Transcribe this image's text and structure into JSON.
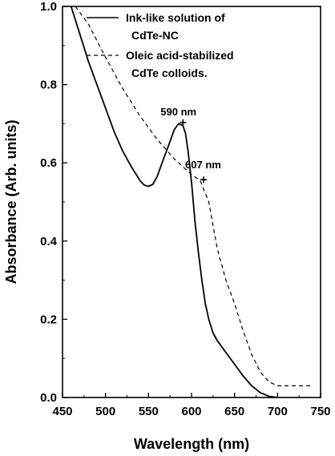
{
  "chart_data": {
    "type": "line",
    "xlabel": "Wavelength (nm)",
    "ylabel": "Absorbance (Arb. units)",
    "xlim": [
      450,
      750
    ],
    "ylim": [
      0.0,
      1.0
    ],
    "xticks": [
      "450",
      "500",
      "550",
      "600",
      "650",
      "700",
      "750"
    ],
    "yticks": [
      "0.0",
      "0.2",
      "0.4",
      "0.6",
      "0.8",
      "1.0"
    ],
    "grid": false,
    "legend_position": "top-right",
    "series": [
      {
        "name_lines": [
          "Ink-like solution of",
          "CdTe-NC"
        ],
        "style": "solid",
        "x": [
          460,
          470,
          480,
          490,
          500,
          510,
          520,
          530,
          540,
          545,
          550,
          555,
          560,
          565,
          570,
          575,
          580,
          585,
          590,
          593,
          596,
          600,
          604,
          608,
          612,
          616,
          620,
          625,
          630,
          640,
          650,
          660,
          670,
          680,
          690,
          700
        ],
        "y": [
          1.0,
          0.93,
          0.86,
          0.8,
          0.74,
          0.68,
          0.63,
          0.59,
          0.555,
          0.543,
          0.54,
          0.545,
          0.565,
          0.595,
          0.625,
          0.655,
          0.685,
          0.7,
          0.695,
          0.675,
          0.63,
          0.55,
          0.45,
          0.37,
          0.3,
          0.24,
          0.2,
          0.165,
          0.145,
          0.115,
          0.085,
          0.055,
          0.03,
          0.012,
          0.003,
          0.0
        ]
      },
      {
        "name_lines": [
          "Oleic acid-stabilized",
          "CdTe colloids."
        ],
        "style": "dashed",
        "x": [
          465,
          480,
          500,
          520,
          540,
          560,
          580,
          600,
          610,
          620,
          625,
          630,
          640,
          650,
          660,
          670,
          680,
          690,
          700,
          720,
          740
        ],
        "y": [
          1.0,
          0.955,
          0.87,
          0.79,
          0.72,
          0.66,
          0.61,
          0.57,
          0.555,
          0.5,
          0.44,
          0.38,
          0.3,
          0.24,
          0.17,
          0.11,
          0.065,
          0.04,
          0.03,
          0.03,
          0.03
        ]
      }
    ],
    "annotations": [
      {
        "text": "590 nm",
        "x": 590,
        "y": 0.703,
        "marker": "+"
      },
      {
        "text": "607 nm",
        "x": 614,
        "y": 0.557,
        "marker": "+"
      }
    ]
  }
}
